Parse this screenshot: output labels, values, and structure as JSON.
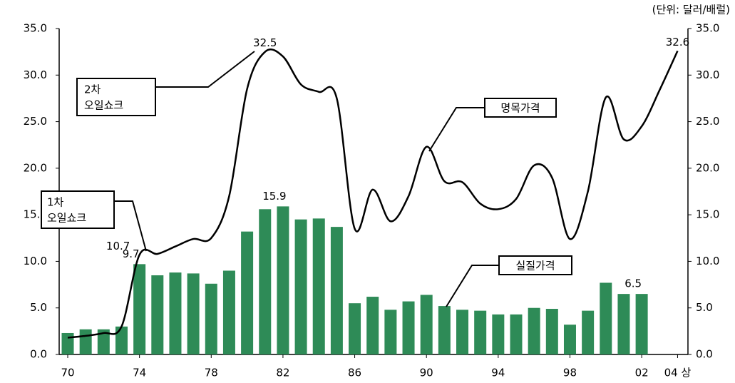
{
  "chart_data": {
    "type": "bar-line",
    "unit_note": "(단위: 달러/배럴)",
    "categories": [
      "70",
      null,
      null,
      null,
      "74",
      null,
      null,
      null,
      "78",
      null,
      null,
      null,
      "82",
      null,
      null,
      null,
      "86",
      null,
      null,
      null,
      "90",
      null,
      null,
      null,
      "94",
      null,
      null,
      null,
      "98",
      null,
      null,
      null,
      "02",
      null,
      "04 상"
    ],
    "series": [
      {
        "name": "실질가격",
        "kind": "bar",
        "color": "#2e8b57",
        "values": [
          2.3,
          2.7,
          2.7,
          3.0,
          9.7,
          8.5,
          8.8,
          8.7,
          7.6,
          9.0,
          13.2,
          15.6,
          15.9,
          14.5,
          14.6,
          13.7,
          5.5,
          6.2,
          4.8,
          5.7,
          6.4,
          5.2,
          4.8,
          4.7,
          4.3,
          4.3,
          5.0,
          4.9,
          3.2,
          4.7,
          7.7,
          6.5,
          6.5,
          null,
          null
        ],
        "value_labels": [
          null,
          null,
          null,
          null,
          "9.7",
          null,
          null,
          null,
          null,
          null,
          null,
          null,
          "15.9",
          null,
          null,
          null,
          null,
          null,
          null,
          null,
          null,
          null,
          null,
          null,
          null,
          null,
          null,
          null,
          null,
          null,
          null,
          null,
          "6.5",
          null,
          null
        ]
      },
      {
        "name": "명목가격",
        "kind": "line",
        "color": "#000000",
        "values": [
          1.8,
          2.0,
          2.3,
          3.0,
          10.7,
          10.8,
          11.6,
          12.4,
          12.5,
          17.0,
          28.5,
          32.5,
          32.0,
          29.0,
          28.2,
          27.5,
          13.5,
          17.7,
          14.3,
          17.0,
          22.3,
          18.6,
          18.5,
          16.2,
          15.6,
          16.7,
          20.3,
          19.0,
          12.4,
          17.5,
          27.6,
          23.1,
          24.5,
          28.4,
          32.6
        ],
        "value_labels": [
          null,
          null,
          null,
          null,
          "10.7",
          null,
          null,
          null,
          null,
          null,
          null,
          "32.5",
          null,
          null,
          null,
          null,
          null,
          null,
          null,
          null,
          null,
          null,
          null,
          null,
          null,
          null,
          null,
          null,
          null,
          null,
          null,
          null,
          null,
          null,
          "32.6"
        ]
      }
    ],
    "annotations": [
      {
        "lines": [
          "2차",
          "오일쇼크"
        ]
      },
      {
        "lines": [
          "1차",
          "오일쇼크"
        ]
      }
    ],
    "ylim": [
      0,
      35
    ],
    "yticks": [
      {
        "value": 0,
        "label": "0.0"
      },
      {
        "value": 5,
        "label": "5.0"
      },
      {
        "value": 10,
        "label": "10.0"
      },
      {
        "value": 15,
        "label": "15.0"
      },
      {
        "value": 20,
        "label": "20.0"
      },
      {
        "value": 25,
        "label": "25.0"
      },
      {
        "value": 30,
        "label": "30.0"
      },
      {
        "value": 35,
        "label": "35.0"
      }
    ],
    "y2lim": [
      0,
      35
    ],
    "y2ticks": [
      {
        "value": 0,
        "label": "0.0"
      },
      {
        "value": 5,
        "label": "5.0"
      },
      {
        "value": 10,
        "label": "10.0"
      },
      {
        "value": 15,
        "label": "15.0"
      },
      {
        "value": 20,
        "label": "20.0"
      },
      {
        "value": 25,
        "label": "25.0"
      },
      {
        "value": 30,
        "label": "30.0"
      },
      {
        "value": 35,
        "label": "35.0"
      }
    ]
  }
}
